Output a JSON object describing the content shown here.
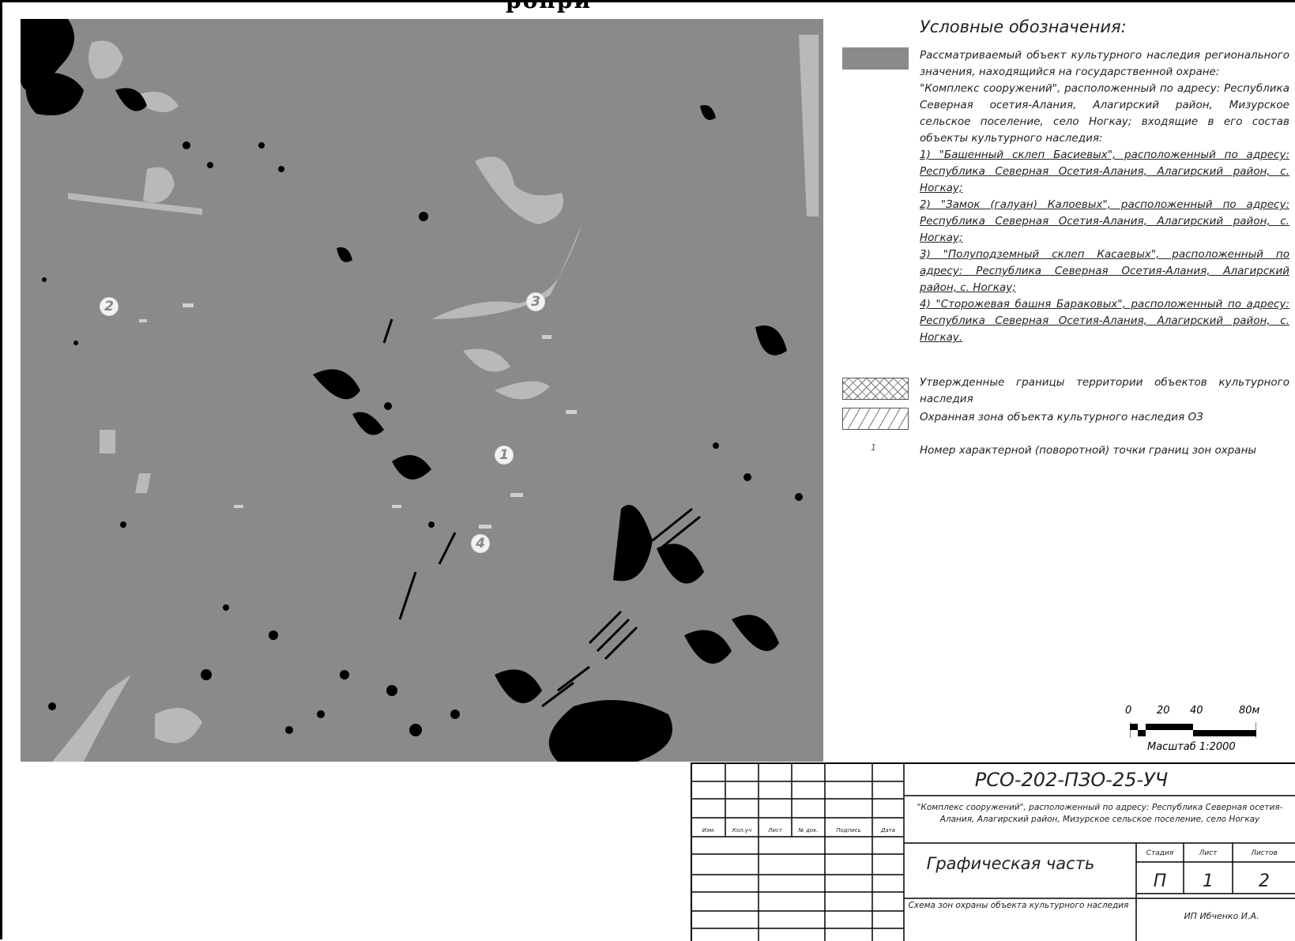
{
  "header": {
    "title": "ропри"
  },
  "map": {
    "point_labels": [
      {
        "id": "p1",
        "label": "1"
      },
      {
        "id": "p2",
        "label": "2"
      },
      {
        "id": "p3",
        "label": "3"
      },
      {
        "id": "p4",
        "label": "4"
      }
    ],
    "colors": {
      "base": "#8a8a8a",
      "light": "#b8b8b8",
      "dark": "#000000"
    }
  },
  "legend": {
    "title": "Условные обозначения:",
    "object": {
      "intro": "Рассматриваемый объект культурного наследия регионального значения, находящийся на государственной охране:",
      "complex": "\"Комплекс сооружений\", расположенный по адресу: Республика Северная осетия-Алания, Алагирский район, Мизурское сельское поселение, село Ногкау; входящие в его состав объекты культурного наследия:",
      "items": [
        "1) \"Башенный склеп Басиевых\", расположенный по адресу: Республика Северная Осетия-Алания, Алагирский район, с. Ногкау;",
        "2) \"Замок (галуан) Калоевых\", расположенный по адресу: Республика Северная Осетия-Алания, Алагирский район, с. Ногкау;",
        "3) \"Полуподземный склеп Касаевых\", расположенный по адресу: Республика Северная Осетия-Алания, Алагирский район, с. Ногкау;",
        "4) \"Сторожевая башня Бараковых\", расположенный по адресу: Республика Северная Осетия-Алания, Алагирский район, с. Ногкау."
      ]
    },
    "boundaries": "Утвержденные границы территории объектов культурного наследия",
    "protect_zone": "Охранная зона объекта культурного наследия ОЗ",
    "point_symbol": "1",
    "point_text": "Номер характерной (поворотной) точки границ зон охраны"
  },
  "scale": {
    "ticks": [
      "0",
      "20",
      "40",
      "80м"
    ],
    "caption": "Масштаб 1:2000"
  },
  "stamp": {
    "doc_code": "РСО-202-ПЗО-25-УЧ",
    "object_desc": "\"Комплекс сооружений\", расположенный по адресу: Республика Северная осетия-Алания, Алагирский район, Мизурское сельское поселение, село Ногкау",
    "section": "Графическая часть",
    "schema": "Схема зон охраны объекта культурного наследия",
    "col_stage": "Стадия",
    "col_sheet": "Лист",
    "col_sheets": "Листов",
    "stage": "П",
    "sheet": "1",
    "sheets": "2",
    "company": "ИП Ибченко И.А.",
    "revision_headers": [
      "Изм.",
      "Кол.уч",
      "Лист",
      "№ док.",
      "Подпись",
      "Дата"
    ]
  }
}
